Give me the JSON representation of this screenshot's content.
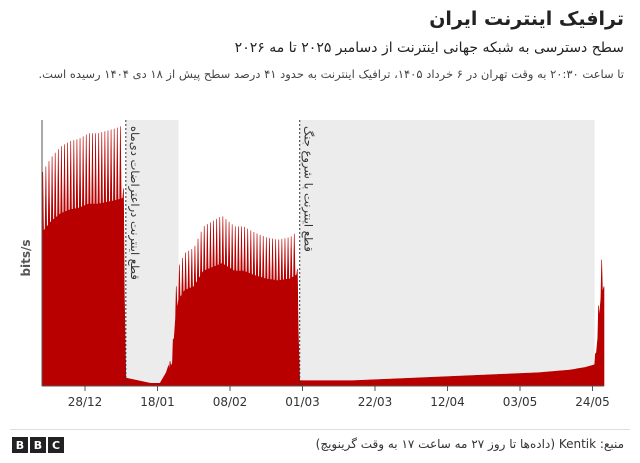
{
  "header": {
    "title": "ترافیک اینترنت ایران",
    "subtitle": "سطح دسترسی به شبکه جهانی اینترنت از دسامبر ۲۰۲۵ تا مه ۲۰۲۶",
    "note": "تا ساعت ۲۰:۳۰ به وقت تهران در ۶ خرداد ۱۴۰۵، ترافیک اینترنت به حدود ۴۱ درصد سطح پیش از ۱۸ دی ۱۴۰۴ رسیده است."
  },
  "footer": {
    "logo": [
      "B",
      "B",
      "C"
    ],
    "source": "منبع: Kentik (داده‌ها تا روز ۲۷ مه ساعت ۱۷ به وقت گرینویچ)"
  },
  "colors": {
    "series": "#b80000",
    "shade": "#ececec",
    "axis": "#555555"
  },
  "chart_data": {
    "type": "area",
    "ylabel": "bits/s",
    "x_ticks": [
      "28/12",
      "18/01",
      "08/02",
      "01/03",
      "22/03",
      "12/04",
      "03/05",
      "24/05"
    ],
    "x_range_days": [
      0,
      181
    ],
    "shutdown_periods": [
      {
        "label": "قطع اینترنت دراعتراضات دی‌ماه",
        "start_day": 27,
        "end_day": 44
      },
      {
        "label": "قطع اینترنت با شروع جنگ",
        "start_day": 83,
        "end_day": 178
      }
    ],
    "series": [
      {
        "values_note": "daily peak level, fraction of pre-shutdown maximum",
        "points": [
          [
            0,
            0.8
          ],
          [
            3,
            0.86
          ],
          [
            6,
            0.9
          ],
          [
            9,
            0.92
          ],
          [
            12,
            0.93
          ],
          [
            15,
            0.95
          ],
          [
            18,
            0.95
          ],
          [
            21,
            0.96
          ],
          [
            24,
            0.97
          ],
          [
            26,
            0.98
          ],
          [
            27,
            0.03
          ],
          [
            35,
            0.01
          ],
          [
            38,
            0.01
          ],
          [
            40,
            0.05
          ],
          [
            42,
            0.12
          ],
          [
            43,
            0.35
          ],
          [
            44,
            0.45
          ],
          [
            46,
            0.5
          ],
          [
            49,
            0.52
          ],
          [
            52,
            0.6
          ],
          [
            55,
            0.62
          ],
          [
            58,
            0.64
          ],
          [
            62,
            0.6
          ],
          [
            65,
            0.6
          ],
          [
            68,
            0.58
          ],
          [
            72,
            0.56
          ],
          [
            76,
            0.55
          ],
          [
            80,
            0.56
          ],
          [
            82,
            0.58
          ],
          [
            83,
            0.02
          ],
          [
            100,
            0.02
          ],
          [
            120,
            0.03
          ],
          [
            140,
            0.04
          ],
          [
            160,
            0.05
          ],
          [
            170,
            0.06
          ],
          [
            175,
            0.07
          ],
          [
            178,
            0.08
          ],
          [
            179,
            0.25
          ],
          [
            180,
            0.46
          ],
          [
            181,
            0.52
          ]
        ]
      }
    ]
  }
}
